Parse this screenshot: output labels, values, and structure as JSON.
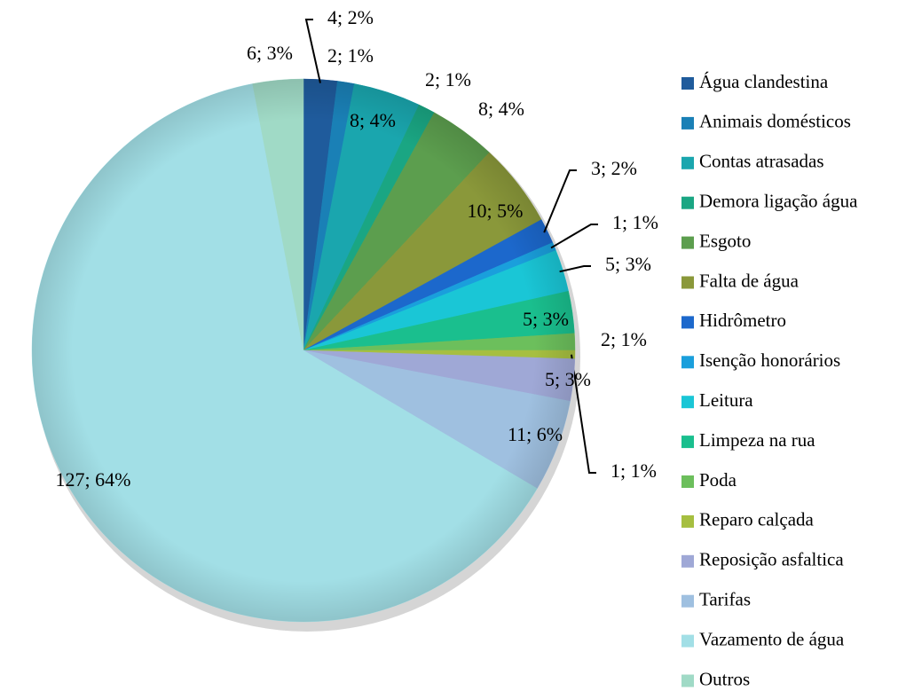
{
  "chart_data": {
    "type": "pie",
    "categories": [
      "Água clandestina",
      "Animais domésticos",
      "Contas atrasadas",
      "Demora ligação água",
      "Esgoto",
      "Falta de água",
      "Hidrômetro",
      "Isenção honorários",
      "Leitura",
      "Limpeza na rua",
      "Poda",
      "Reparo calçada",
      "Reposição asfaltica",
      "Tarifas",
      "Vazamento de água",
      "Outros"
    ],
    "values": [
      4,
      2,
      8,
      2,
      8,
      10,
      3,
      1,
      5,
      5,
      2,
      1,
      5,
      11,
      127,
      6
    ],
    "value_labels": [
      "4; 2%",
      "2; 1%",
      "8; 4%",
      "2; 1%",
      "8; 4%",
      "10; 5%",
      "3; 2%",
      "1; 1%",
      "5; 3%",
      "5; 3%",
      "2; 1%",
      "1; 1%",
      "5; 3%",
      "11; 6%",
      "127; 64%",
      "6; 3%"
    ],
    "colors": [
      "#1f5b9c",
      "#1a80b6",
      "#1aa6ae",
      "#1aa683",
      "#5c9e4e",
      "#8a983a",
      "#1c68cc",
      "#1a9fdc",
      "#1ac6d6",
      "#1abf8e",
      "#6cbf5c",
      "#a6bf40",
      "#9fa8d6",
      "#9fc0e0",
      "#a2dfe6",
      "#a0dac6"
    ],
    "legend": "right"
  }
}
